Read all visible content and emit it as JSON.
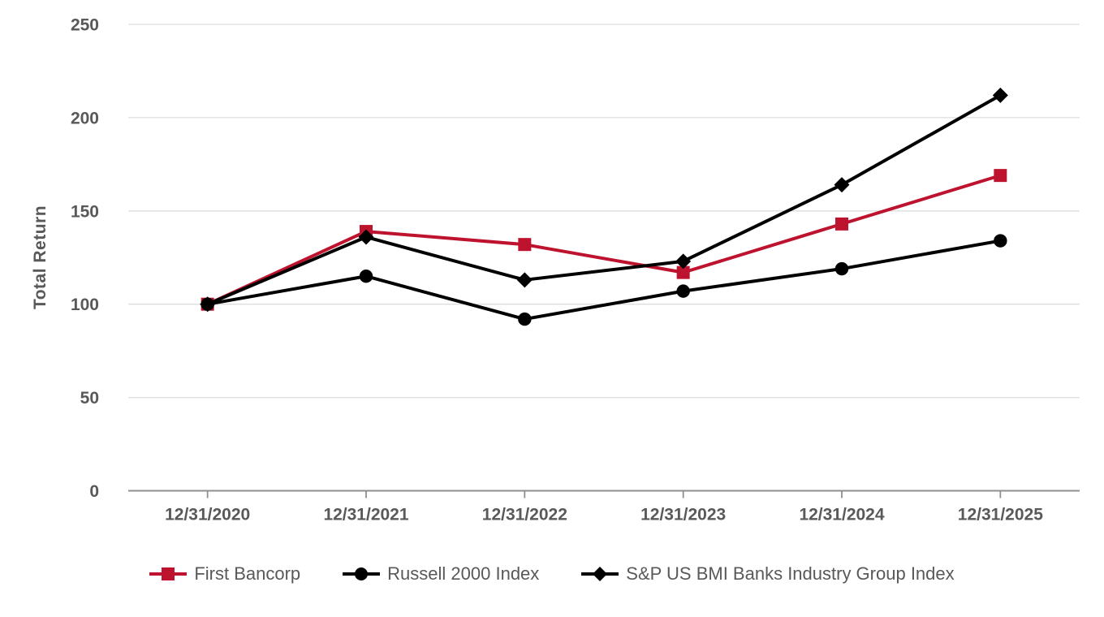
{
  "chart_data": {
    "type": "line",
    "title": "",
    "ylabel": "Total Return",
    "xlabel": "",
    "categories": [
      "12/31/2020",
      "12/31/2021",
      "12/31/2022",
      "12/31/2023",
      "12/31/2024",
      "12/31/2025"
    ],
    "ylim": [
      0,
      250
    ],
    "yticks": [
      0,
      50,
      100,
      150,
      200,
      250
    ],
    "grid": "horizontal",
    "legend_position": "bottom",
    "series": [
      {
        "name": "First Bancorp",
        "marker": "square",
        "color": "#BE132E",
        "values": [
          100,
          139,
          132,
          117,
          143,
          169
        ]
      },
      {
        "name": "Russell 2000 Index",
        "marker": "circle",
        "color": "#000000",
        "values": [
          100,
          115,
          92,
          107,
          119,
          134
        ]
      },
      {
        "name": "S&P US BMI Banks Industry Group Index",
        "marker": "diamond",
        "color": "#000000",
        "values": [
          100,
          136,
          113,
          123,
          164,
          212
        ]
      }
    ]
  },
  "colors": {
    "text": "#595959",
    "gridline": "#DEDEDE",
    "axis": "#8F8F8F",
    "background": "#FFFFFF"
  }
}
